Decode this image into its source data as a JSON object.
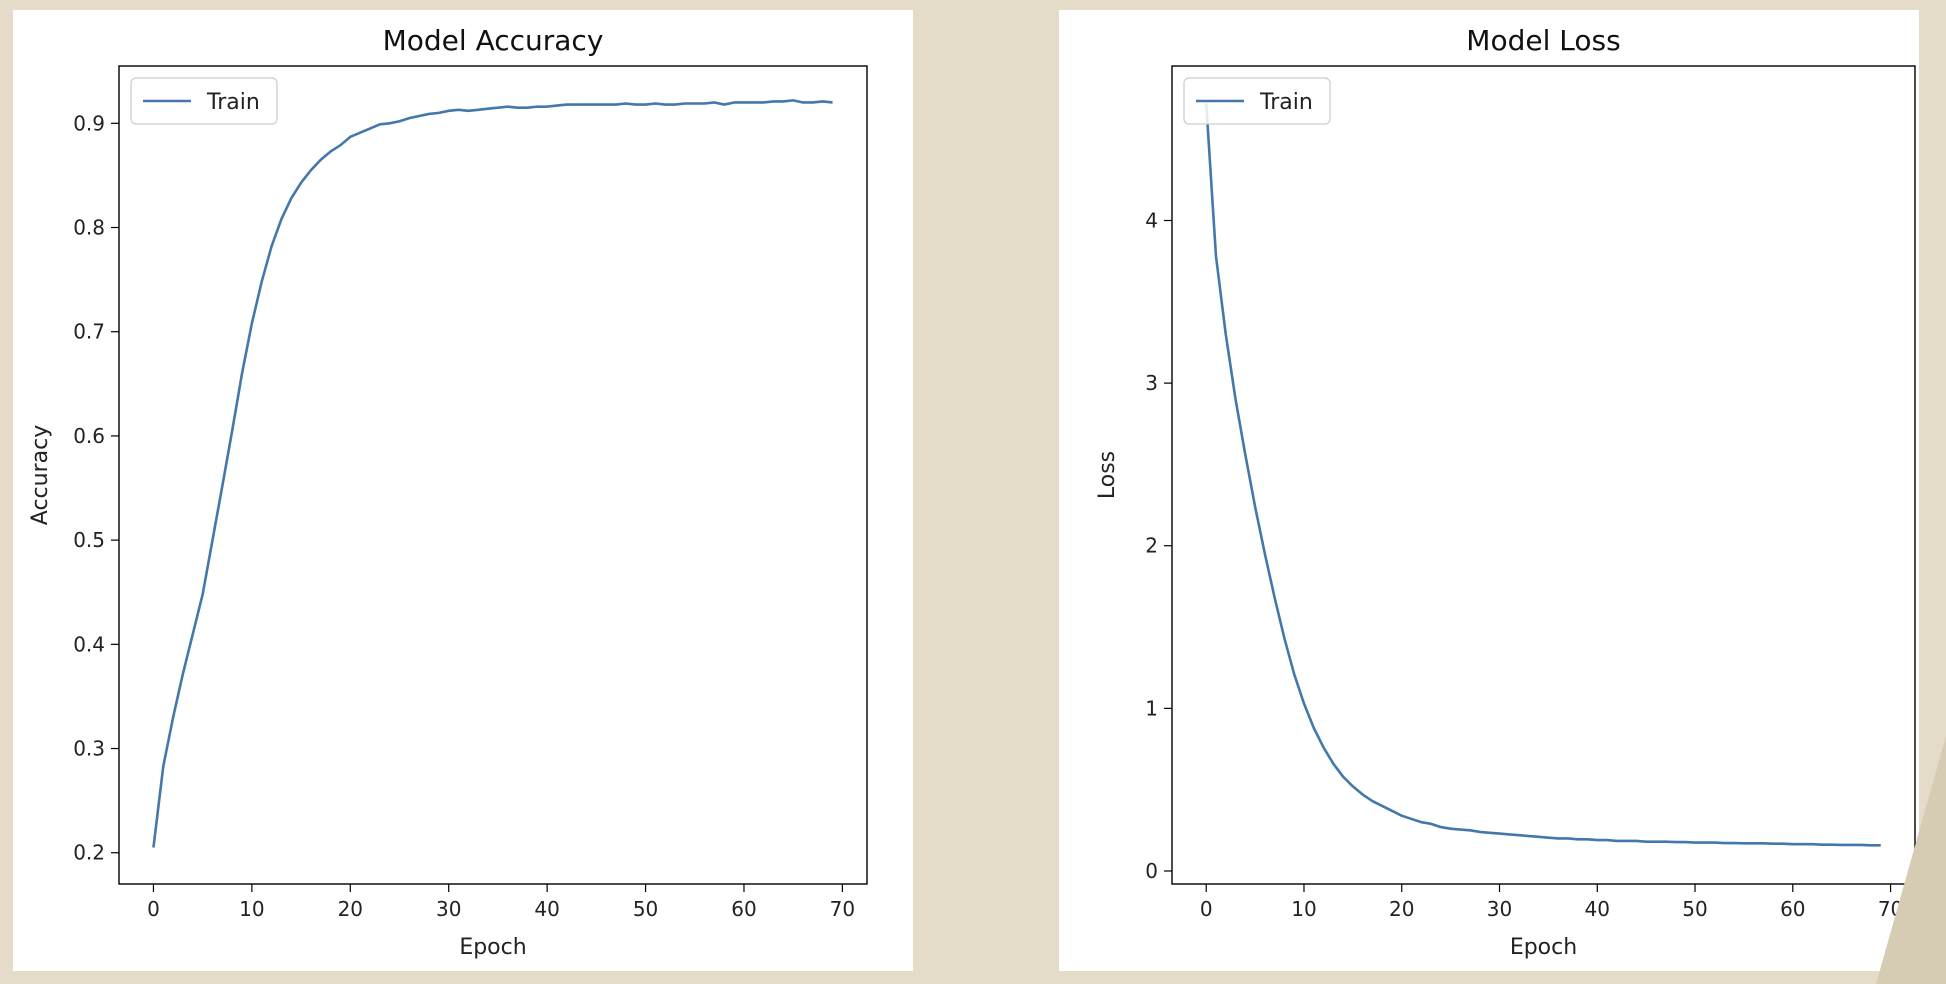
{
  "colors": {
    "line": "#4477aa",
    "background": "#e4dcc8",
    "panel": "#ffffff"
  },
  "chart_data": [
    {
      "type": "line",
      "title": "Model Accuracy",
      "xlabel": "Epoch",
      "ylabel": "Accuracy",
      "xlim": [
        -3.5,
        72.5
      ],
      "ylim": [
        0.17,
        0.955
      ],
      "xticks": [
        0,
        10,
        20,
        30,
        40,
        50,
        60,
        70
      ],
      "yticks": [
        0.2,
        0.3,
        0.4,
        0.5,
        0.6,
        0.7,
        0.8,
        0.9
      ],
      "grid": false,
      "legend_position": "top-left",
      "series": [
        {
          "name": "Train",
          "x": [
            0,
            1,
            2,
            3,
            4,
            5,
            6,
            7,
            8,
            9,
            10,
            11,
            12,
            13,
            14,
            15,
            16,
            17,
            18,
            19,
            20,
            21,
            22,
            23,
            24,
            25,
            26,
            27,
            28,
            29,
            30,
            31,
            32,
            33,
            34,
            35,
            36,
            37,
            38,
            39,
            40,
            41,
            42,
            43,
            44,
            45,
            46,
            47,
            48,
            49,
            50,
            51,
            52,
            53,
            54,
            55,
            56,
            57,
            58,
            59,
            60,
            61,
            62,
            63,
            64,
            65,
            66,
            67,
            68,
            69
          ],
          "y": [
            0.205,
            0.283,
            0.33,
            0.372,
            0.41,
            0.448,
            0.5,
            0.552,
            0.605,
            0.66,
            0.708,
            0.748,
            0.782,
            0.808,
            0.828,
            0.843,
            0.855,
            0.865,
            0.873,
            0.879,
            0.887,
            0.891,
            0.895,
            0.899,
            0.9,
            0.902,
            0.905,
            0.907,
            0.909,
            0.91,
            0.912,
            0.913,
            0.912,
            0.913,
            0.914,
            0.915,
            0.916,
            0.915,
            0.915,
            0.916,
            0.916,
            0.917,
            0.918,
            0.918,
            0.918,
            0.918,
            0.918,
            0.918,
            0.919,
            0.918,
            0.918,
            0.919,
            0.918,
            0.918,
            0.919,
            0.919,
            0.919,
            0.92,
            0.918,
            0.92,
            0.92,
            0.92,
            0.92,
            0.921,
            0.921,
            0.922,
            0.92,
            0.92,
            0.921,
            0.92
          ]
        }
      ]
    },
    {
      "type": "line",
      "title": "Model Loss",
      "xlabel": "Epoch",
      "ylabel": "Loss",
      "xlim": [
        -3.5,
        72.5
      ],
      "ylim": [
        -0.08,
        4.95
      ],
      "xticks": [
        0,
        10,
        20,
        30,
        40,
        50,
        60,
        70
      ],
      "yticks": [
        0,
        1,
        2,
        3,
        4
      ],
      "grid": false,
      "legend_position": "top-left",
      "series": [
        {
          "name": "Train",
          "x": [
            0,
            1,
            2,
            3,
            4,
            5,
            6,
            7,
            8,
            9,
            10,
            11,
            12,
            13,
            14,
            15,
            16,
            17,
            18,
            19,
            20,
            21,
            22,
            23,
            24,
            25,
            26,
            27,
            28,
            29,
            30,
            31,
            32,
            33,
            34,
            35,
            36,
            37,
            38,
            39,
            40,
            41,
            42,
            43,
            44,
            45,
            46,
            47,
            48,
            49,
            50,
            51,
            52,
            53,
            54,
            55,
            56,
            57,
            58,
            59,
            60,
            61,
            62,
            63,
            64,
            65,
            66,
            67,
            68,
            69
          ],
          "y": [
            4.72,
            3.78,
            3.3,
            2.9,
            2.56,
            2.24,
            1.95,
            1.68,
            1.43,
            1.21,
            1.03,
            0.88,
            0.76,
            0.66,
            0.58,
            0.52,
            0.47,
            0.43,
            0.4,
            0.37,
            0.34,
            0.32,
            0.3,
            0.29,
            0.27,
            0.26,
            0.255,
            0.25,
            0.24,
            0.235,
            0.23,
            0.225,
            0.22,
            0.215,
            0.21,
            0.205,
            0.2,
            0.2,
            0.195,
            0.195,
            0.19,
            0.19,
            0.185,
            0.185,
            0.185,
            0.18,
            0.18,
            0.18,
            0.178,
            0.178,
            0.175,
            0.175,
            0.175,
            0.172,
            0.172,
            0.17,
            0.17,
            0.17,
            0.168,
            0.168,
            0.165,
            0.165,
            0.165,
            0.162,
            0.162,
            0.16,
            0.16,
            0.16,
            0.158,
            0.158
          ]
        }
      ]
    }
  ]
}
